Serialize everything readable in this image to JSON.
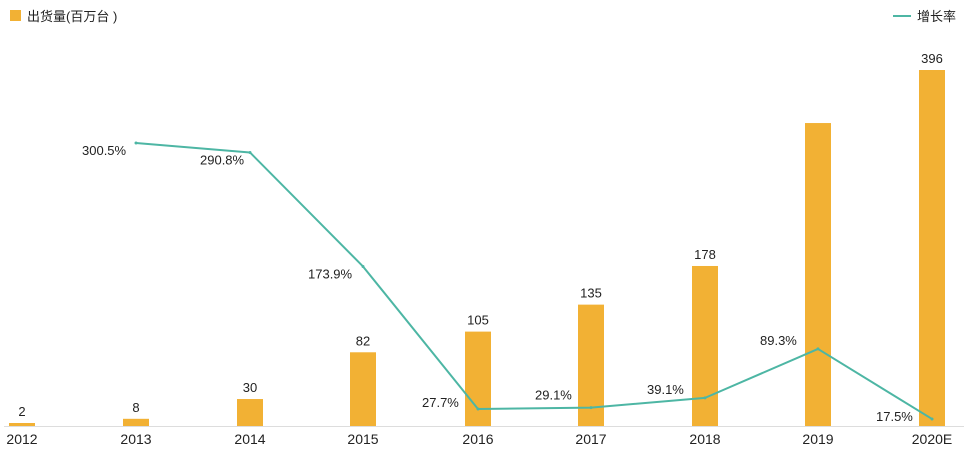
{
  "legend": {
    "bar_label": "出货量(百万台 )",
    "line_label": "增长率"
  },
  "chart_data": {
    "type": "bar",
    "categories": [
      "2012",
      "2013",
      "2014",
      "2015",
      "2016",
      "2017",
      "2018",
      "2019",
      "2020E"
    ],
    "series": [
      {
        "name": "出货量(百万台 )",
        "type": "bar",
        "values": [
          2,
          8,
          30,
          82,
          105,
          135,
          178,
          337,
          396
        ],
        "labels": [
          "2",
          "8",
          "30",
          "82",
          "105",
          "135",
          "178",
          "",
          "396"
        ],
        "color": "#F2B134"
      },
      {
        "name": "增长率",
        "type": "line",
        "values": [
          null,
          300.5,
          290.8,
          173.9,
          27.7,
          29.1,
          39.1,
          89.3,
          17.5
        ],
        "labels": [
          "",
          "300.5%",
          "290.8%",
          "173.9%",
          "27.7%",
          "29.1%",
          "39.1%",
          "89.3%",
          "17.5%"
        ],
        "color": "#4DB6A4"
      }
    ],
    "bar_ylim": [
      0,
      396
    ],
    "line_ylim": [
      0,
      320
    ],
    "grid": false,
    "legend_position": "top"
  }
}
